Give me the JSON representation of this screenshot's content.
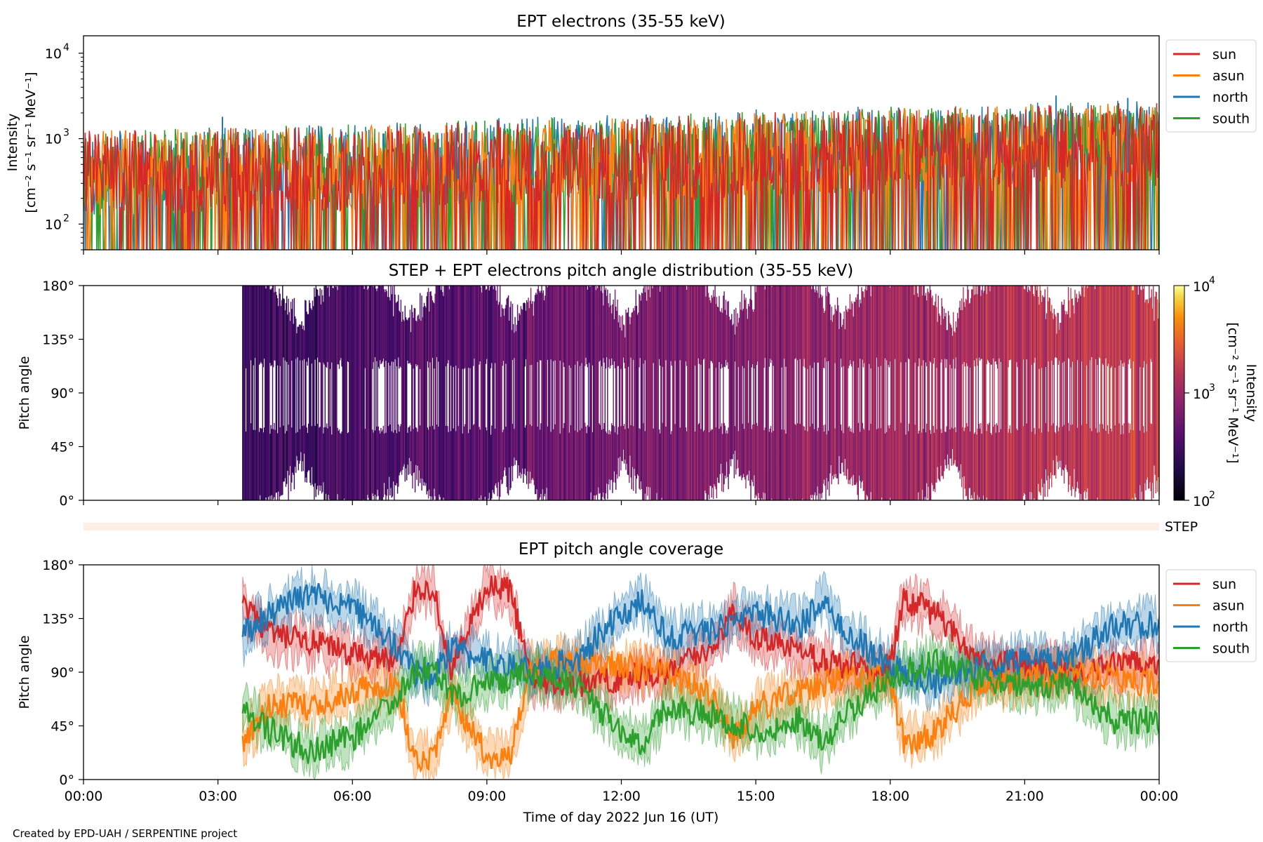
{
  "credit": "Created by EPD-UAH / SERPENTINE project",
  "chart_data": [
    {
      "type": "line",
      "title": "EPT electrons (35-55 keV)",
      "xlabel": "",
      "ylabel_line1": "Intensity",
      "ylabel_line2": "[cm⁻² s⁻¹ sr⁻¹ MeV⁻¹]",
      "yscale": "log",
      "ylim": [
        50,
        16000
      ],
      "yticks": [
        {
          "value": 100,
          "base": "10",
          "exp": "2"
        },
        {
          "value": 1000,
          "base": "10",
          "exp": "3"
        },
        {
          "value": 10000,
          "base": "10",
          "exp": "4"
        }
      ],
      "xlim_hours": [
        0,
        24
      ],
      "grid": false,
      "legend_position": "top-right, outside plot",
      "series": [
        {
          "name": "sun",
          "color": "#d62728",
          "baseline": [
            {
              "x": 0,
              "y": 350
            },
            {
              "x": 6,
              "y": 400
            },
            {
              "x": 12,
              "y": 500
            },
            {
              "x": 18,
              "y": 650
            },
            {
              "x": 24,
              "y": 750
            }
          ]
        },
        {
          "name": "asun",
          "color": "#ff7f0e",
          "baseline": [
            {
              "x": 0,
              "y": 350
            },
            {
              "x": 6,
              "y": 400
            },
            {
              "x": 12,
              "y": 500
            },
            {
              "x": 18,
              "y": 650
            },
            {
              "x": 24,
              "y": 750
            }
          ]
        },
        {
          "name": "north",
          "color": "#1f77b4",
          "baseline": [
            {
              "x": 0,
              "y": 350
            },
            {
              "x": 6,
              "y": 420
            },
            {
              "x": 12,
              "y": 550
            },
            {
              "x": 18,
              "y": 700
            },
            {
              "x": 24,
              "y": 800
            }
          ]
        },
        {
          "name": "south",
          "color": "#2ca02c",
          "baseline": [
            {
              "x": 0,
              "y": 350
            },
            {
              "x": 6,
              "y": 420
            },
            {
              "x": 12,
              "y": 520
            },
            {
              "x": 18,
              "y": 680
            },
            {
              "x": 24,
              "y": 780
            }
          ]
        }
      ],
      "peak_values": [
        {
          "x": 3.1,
          "y": 1800
        },
        {
          "x": 21.7,
          "y": 3200
        },
        {
          "x": 23.3,
          "y": 3000
        }
      ]
    },
    {
      "type": "heatmap",
      "title": "STEP + EPT electrons pitch angle distribution (35-55 keV)",
      "ylabel": "Pitch angle",
      "ylim": [
        0,
        180
      ],
      "yticks": [
        "0°",
        "45°",
        "90°",
        "135°",
        "180°"
      ],
      "colorbar_label_line1": "Intensity",
      "colorbar_label_line2": "[cm⁻² s⁻¹ sr⁻¹ MeV⁻¹]",
      "colorbar_ticks": [
        {
          "value": 100,
          "base": "10",
          "exp": "2"
        },
        {
          "value": 1000,
          "base": "10",
          "exp": "3"
        },
        {
          "value": 10000,
          "base": "10",
          "exp": "4"
        }
      ],
      "colorbar_range": [
        100,
        10000
      ],
      "colormap": "inferno",
      "data_start_hour": 3.55
    },
    {
      "type": "bar",
      "title": "",
      "label": "STEP",
      "color": "#fdeee6"
    },
    {
      "type": "line",
      "title": "EPT pitch angle coverage",
      "xlabel": "Time of day 2022 Jun 16 (UT)",
      "ylabel": "Pitch angle",
      "ylim": [
        0,
        180
      ],
      "yticks": [
        "0°",
        "45°",
        "90°",
        "135°",
        "180°"
      ],
      "xticks": [
        "00:00",
        "03:00",
        "06:00",
        "09:00",
        "12:00",
        "15:00",
        "18:00",
        "21:00",
        "00:00"
      ],
      "legend_position": "top-right, outside plot",
      "series": [
        {
          "name": "sun",
          "color": "#d62728",
          "points": [
            {
              "x": 3.55,
              "y": 145
            },
            {
              "x": 4.2,
              "y": 120
            },
            {
              "x": 5,
              "y": 115
            },
            {
              "x": 6,
              "y": 105
            },
            {
              "x": 7,
              "y": 100
            },
            {
              "x": 7.4,
              "y": 160
            },
            {
              "x": 7.8,
              "y": 160
            },
            {
              "x": 8.2,
              "y": 90
            },
            {
              "x": 9,
              "y": 160
            },
            {
              "x": 9.5,
              "y": 160
            },
            {
              "x": 10,
              "y": 85
            },
            {
              "x": 11,
              "y": 80
            },
            {
              "x": 12,
              "y": 85
            },
            {
              "x": 13,
              "y": 90
            },
            {
              "x": 14,
              "y": 110
            },
            {
              "x": 14.5,
              "y": 140
            },
            {
              "x": 15,
              "y": 120
            },
            {
              "x": 16,
              "y": 105
            },
            {
              "x": 17,
              "y": 95
            },
            {
              "x": 18,
              "y": 95
            },
            {
              "x": 18.3,
              "y": 150
            },
            {
              "x": 19,
              "y": 140
            },
            {
              "x": 20,
              "y": 100
            },
            {
              "x": 21,
              "y": 95
            },
            {
              "x": 22,
              "y": 90
            },
            {
              "x": 23,
              "y": 95
            },
            {
              "x": 24,
              "y": 100
            }
          ]
        },
        {
          "name": "asun",
          "color": "#ff7f0e",
          "points": [
            {
              "x": 3.55,
              "y": 32
            },
            {
              "x": 4.2,
              "y": 65
            },
            {
              "x": 5,
              "y": 60
            },
            {
              "x": 6,
              "y": 75
            },
            {
              "x": 7,
              "y": 80
            },
            {
              "x": 7.4,
              "y": 15
            },
            {
              "x": 7.8,
              "y": 20
            },
            {
              "x": 8.2,
              "y": 70
            },
            {
              "x": 9,
              "y": 20
            },
            {
              "x": 9.5,
              "y": 18
            },
            {
              "x": 10,
              "y": 95
            },
            {
              "x": 11,
              "y": 100
            },
            {
              "x": 12,
              "y": 95
            },
            {
              "x": 13,
              "y": 90
            },
            {
              "x": 14,
              "y": 70
            },
            {
              "x": 14.5,
              "y": 35
            },
            {
              "x": 15,
              "y": 60
            },
            {
              "x": 16,
              "y": 75
            },
            {
              "x": 17,
              "y": 85
            },
            {
              "x": 18,
              "y": 85
            },
            {
              "x": 18.3,
              "y": 30
            },
            {
              "x": 19,
              "y": 40
            },
            {
              "x": 20,
              "y": 80
            },
            {
              "x": 21,
              "y": 85
            },
            {
              "x": 22,
              "y": 90
            },
            {
              "x": 23,
              "y": 85
            },
            {
              "x": 24,
              "y": 80
            }
          ]
        },
        {
          "name": "north",
          "color": "#1f77b4",
          "points": [
            {
              "x": 3.55,
              "y": 120
            },
            {
              "x": 4.2,
              "y": 140
            },
            {
              "x": 5,
              "y": 155
            },
            {
              "x": 6,
              "y": 145
            },
            {
              "x": 7,
              "y": 110
            },
            {
              "x": 7.4,
              "y": 90
            },
            {
              "x": 7.8,
              "y": 85
            },
            {
              "x": 8.2,
              "y": 110
            },
            {
              "x": 9,
              "y": 100
            },
            {
              "x": 9.5,
              "y": 95
            },
            {
              "x": 10,
              "y": 90
            },
            {
              "x": 11,
              "y": 100
            },
            {
              "x": 12,
              "y": 140
            },
            {
              "x": 12.5,
              "y": 150
            },
            {
              "x": 13,
              "y": 120
            },
            {
              "x": 14,
              "y": 125
            },
            {
              "x": 15,
              "y": 140
            },
            {
              "x": 16,
              "y": 130
            },
            {
              "x": 16.5,
              "y": 150
            },
            {
              "x": 17,
              "y": 125
            },
            {
              "x": 18,
              "y": 95
            },
            {
              "x": 19,
              "y": 80
            },
            {
              "x": 20,
              "y": 95
            },
            {
              "x": 21,
              "y": 100
            },
            {
              "x": 22,
              "y": 100
            },
            {
              "x": 23,
              "y": 130
            },
            {
              "x": 24,
              "y": 130
            }
          ]
        },
        {
          "name": "south",
          "color": "#2ca02c",
          "points": [
            {
              "x": 3.55,
              "y": 60
            },
            {
              "x": 4.2,
              "y": 40
            },
            {
              "x": 5,
              "y": 25
            },
            {
              "x": 6,
              "y": 35
            },
            {
              "x": 7,
              "y": 70
            },
            {
              "x": 7.4,
              "y": 90
            },
            {
              "x": 7.8,
              "y": 95
            },
            {
              "x": 8.2,
              "y": 70
            },
            {
              "x": 9,
              "y": 80
            },
            {
              "x": 9.5,
              "y": 85
            },
            {
              "x": 10,
              "y": 90
            },
            {
              "x": 11,
              "y": 80
            },
            {
              "x": 12,
              "y": 40
            },
            {
              "x": 12.5,
              "y": 30
            },
            {
              "x": 13,
              "y": 60
            },
            {
              "x": 14,
              "y": 55
            },
            {
              "x": 15,
              "y": 40
            },
            {
              "x": 16,
              "y": 50
            },
            {
              "x": 16.5,
              "y": 30
            },
            {
              "x": 17,
              "y": 55
            },
            {
              "x": 18,
              "y": 85
            },
            {
              "x": 19,
              "y": 100
            },
            {
              "x": 20,
              "y": 85
            },
            {
              "x": 21,
              "y": 80
            },
            {
              "x": 22,
              "y": 80
            },
            {
              "x": 23,
              "y": 50
            },
            {
              "x": 24,
              "y": 50
            }
          ]
        }
      ]
    }
  ]
}
